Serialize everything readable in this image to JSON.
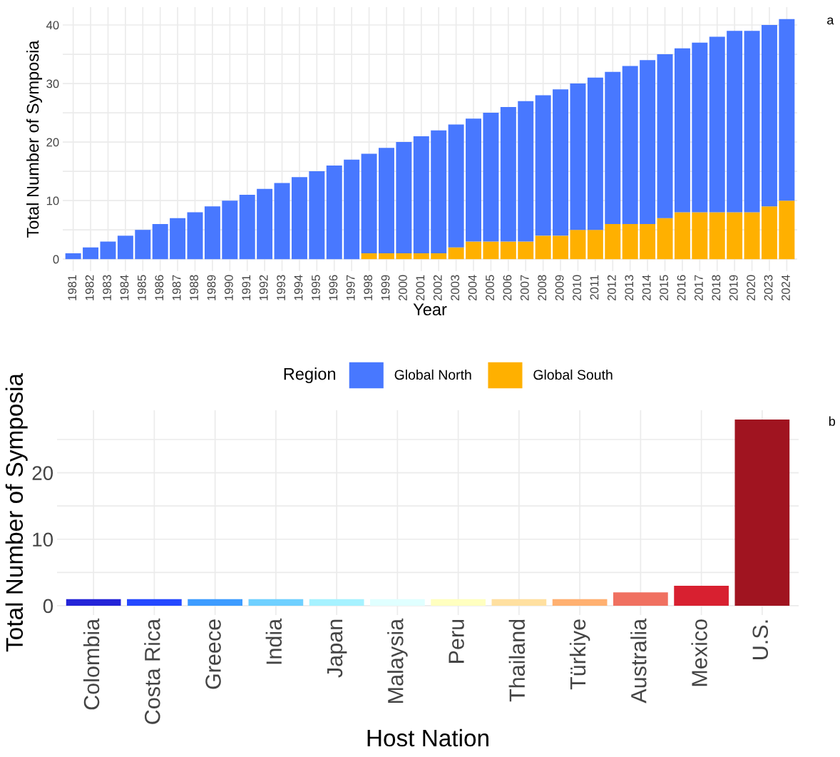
{
  "chart_data": [
    {
      "type": "bar",
      "stacked": true,
      "xlabel": "Year",
      "ylabel": "Total Number of Symposia",
      "legend_title": "Region",
      "legend": "bottom",
      "grid": true,
      "categories": [
        "1981",
        "1982",
        "1983",
        "1984",
        "1985",
        "1986",
        "1987",
        "1988",
        "1989",
        "1990",
        "1991",
        "1992",
        "1993",
        "1994",
        "1995",
        "1996",
        "1997",
        "1998",
        "1999",
        "2000",
        "2001",
        "2002",
        "2003",
        "2004",
        "2005",
        "2006",
        "2007",
        "2008",
        "2009",
        "2010",
        "2011",
        "2012",
        "2013",
        "2014",
        "2015",
        "2016",
        "2017",
        "2018",
        "2019",
        "2020",
        "2023",
        "2024"
      ],
      "series": [
        {
          "name": "Global South",
          "color": "#ffb000",
          "values": [
            0,
            0,
            0,
            0,
            0,
            0,
            0,
            0,
            0,
            0,
            0,
            0,
            0,
            0,
            0,
            0,
            0,
            1,
            1,
            1,
            1,
            1,
            2,
            3,
            3,
            3,
            3,
            4,
            4,
            5,
            5,
            6,
            6,
            6,
            7,
            8,
            8,
            8,
            8,
            8,
            9,
            10
          ]
        },
        {
          "name": "Global North",
          "color": "#4878ff",
          "values": [
            1,
            2,
            3,
            4,
            5,
            6,
            7,
            8,
            9,
            10,
            11,
            12,
            13,
            14,
            15,
            16,
            17,
            17,
            18,
            19,
            20,
            21,
            21,
            21,
            22,
            23,
            24,
            24,
            25,
            25,
            26,
            26,
            27,
            28,
            28,
            28,
            29,
            30,
            31,
            31,
            31,
            31
          ]
        }
      ],
      "ylim": [
        -2.05,
        43.05
      ],
      "yticks": [
        0,
        {
          "value": 5,
          "label": null
        },
        10,
        {
          "value": 15,
          "label": null
        },
        20,
        {
          "value": 25,
          "label": null
        },
        30,
        {
          "value": 35,
          "label": null
        },
        40
      ],
      "annotations": [
        "a"
      ]
    },
    {
      "type": "bar",
      "xlabel": "Host Nation",
      "ylabel": "Total Number of Symposia",
      "grid": true,
      "categories": [
        "Colombia",
        "Costa Rica",
        "Greece",
        "India",
        "Japan",
        "Malaysia",
        "Peru",
        "Thailand",
        "Türkiye",
        "Australia",
        "Mexico",
        "U.S."
      ],
      "values": [
        1,
        1,
        1,
        1,
        1,
        1,
        1,
        1,
        1,
        2,
        3,
        28
      ],
      "colors": [
        "#2424d8",
        "#2448ff",
        "#3d9cff",
        "#6fd0ff",
        "#a6f2ff",
        "#e0ffff",
        "#ffffc0",
        "#ffe0a0",
        "#ffb070",
        "#f07060",
        "#d82030",
        "#a01420"
      ],
      "ylim": [
        -1.4,
        29.4
      ],
      "yticks": [
        0,
        {
          "value": 5,
          "label": null
        },
        10,
        {
          "value": 15,
          "label": null
        },
        20,
        {
          "value": 25,
          "label": null
        }
      ],
      "annotations": [
        "b"
      ]
    }
  ]
}
